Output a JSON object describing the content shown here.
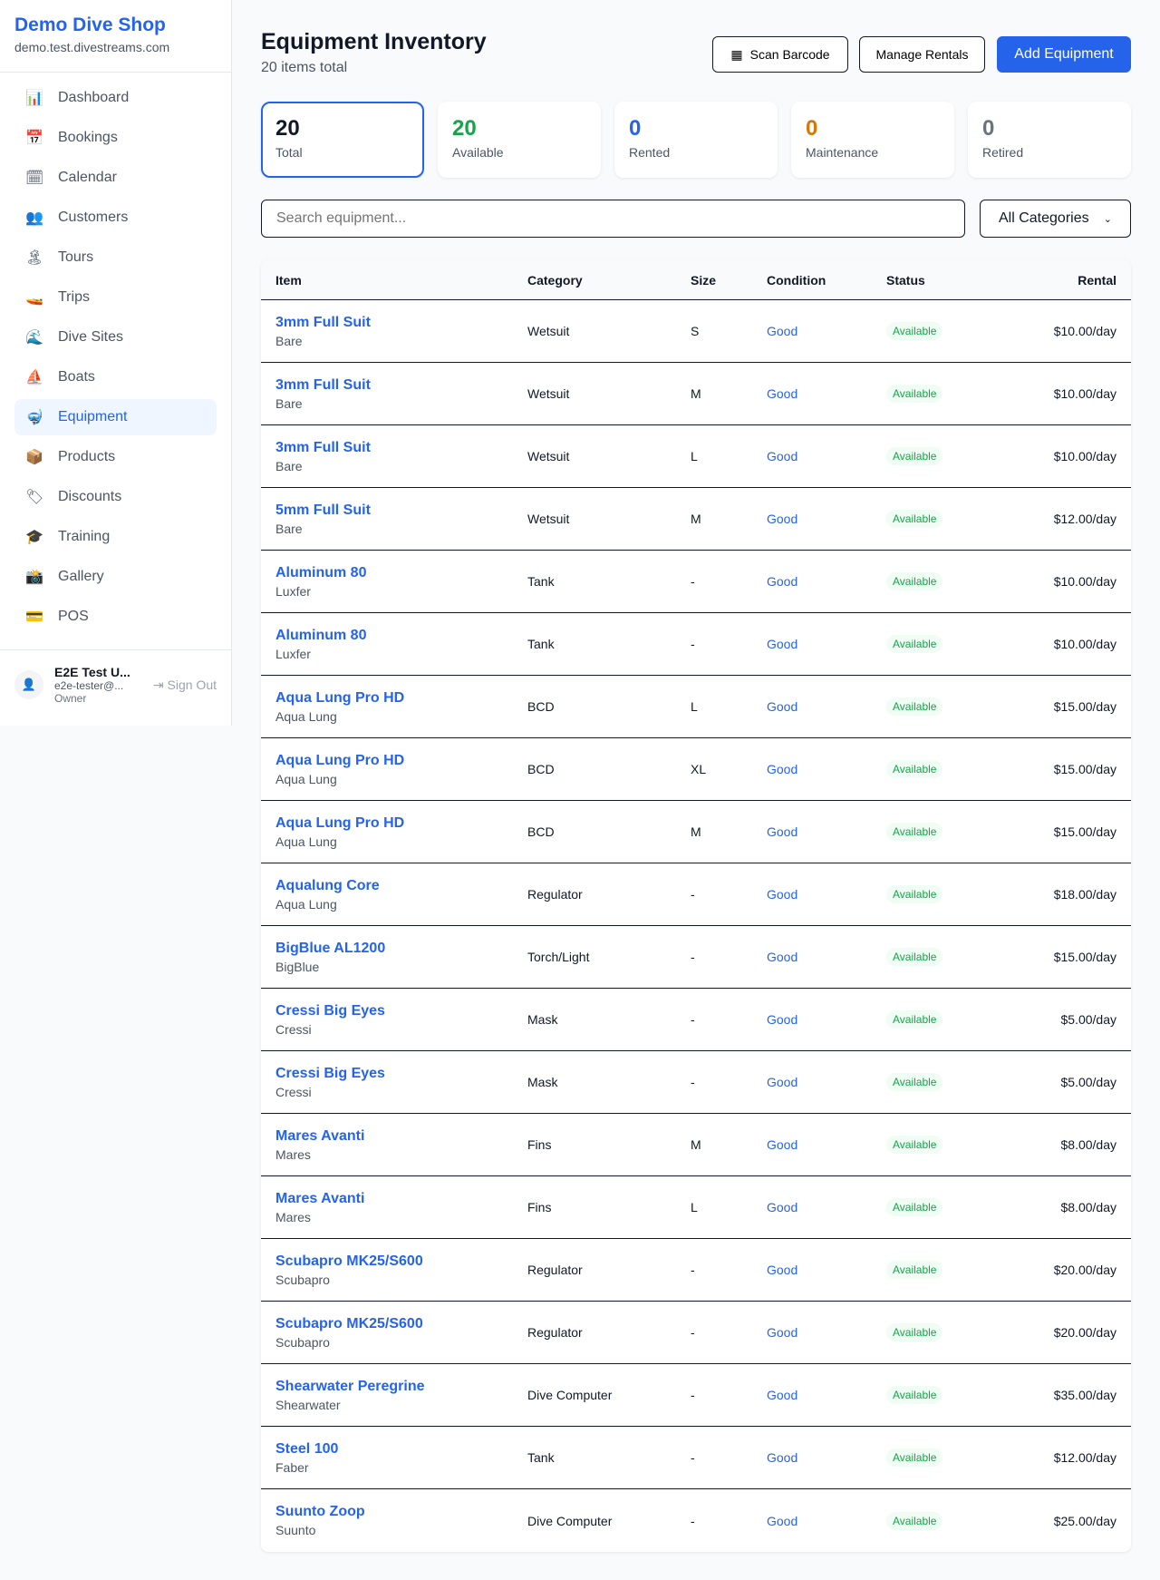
{
  "sidebar": {
    "brand": "Demo Dive Shop",
    "domain": "demo.test.divestreams.com",
    "items": [
      {
        "label": "Dashboard",
        "icon": "📊",
        "name": "bar-chart"
      },
      {
        "label": "Bookings",
        "icon": "📅",
        "name": "calendar-date"
      },
      {
        "label": "Calendar",
        "icon": "🗓",
        "name": "calendar"
      },
      {
        "label": "Customers",
        "icon": "👥",
        "name": "people"
      },
      {
        "label": "Tours",
        "icon": "🏝",
        "name": "island"
      },
      {
        "label": "Trips",
        "icon": "🚤",
        "name": "speedboat"
      },
      {
        "label": "Dive Sites",
        "icon": "🌊",
        "name": "wave"
      },
      {
        "label": "Boats",
        "icon": "⛵",
        "name": "sailboat"
      },
      {
        "label": "Equipment",
        "icon": "🤿",
        "name": "diving-mask"
      },
      {
        "label": "Products",
        "icon": "📦",
        "name": "package"
      },
      {
        "label": "Discounts",
        "icon": "🏷",
        "name": "tag"
      },
      {
        "label": "Training",
        "icon": "🎓",
        "name": "graduation-cap"
      },
      {
        "label": "Gallery",
        "icon": "📸",
        "name": "camera"
      },
      {
        "label": "POS",
        "icon": "💳",
        "name": "credit-card"
      }
    ],
    "active": "Equipment",
    "user": {
      "name": "E2E Test U...",
      "email": "e2e-tester@...",
      "role": "Owner",
      "sign_out": "Sign Out"
    }
  },
  "header": {
    "title": "Equipment Inventory",
    "subtitle": "20 items total",
    "scan": "Scan Barcode",
    "manage": "Manage Rentals",
    "add": "Add Equipment"
  },
  "stats": [
    {
      "value": "20",
      "label": "Total",
      "color": "#111827"
    },
    {
      "value": "20",
      "label": "Available",
      "color": "#16a34a"
    },
    {
      "value": "0",
      "label": "Rented",
      "color": "#2563eb"
    },
    {
      "value": "0",
      "label": "Maintenance",
      "color": "#d97706"
    },
    {
      "value": "0",
      "label": "Retired",
      "color": "#6b7280"
    }
  ],
  "filters": {
    "search_placeholder": "Search equipment...",
    "category": "All Categories"
  },
  "table": {
    "columns": [
      "Item",
      "Category",
      "Size",
      "Condition",
      "Status",
      "Rental"
    ],
    "rows": [
      [
        "3mm Full Suit",
        "Bare",
        "Wetsuit",
        "S",
        "Good",
        "Available",
        "$10.00/day"
      ],
      [
        "3mm Full Suit",
        "Bare",
        "Wetsuit",
        "M",
        "Good",
        "Available",
        "$10.00/day"
      ],
      [
        "3mm Full Suit",
        "Bare",
        "Wetsuit",
        "L",
        "Good",
        "Available",
        "$10.00/day"
      ],
      [
        "5mm Full Suit",
        "Bare",
        "Wetsuit",
        "M",
        "Good",
        "Available",
        "$12.00/day"
      ],
      [
        "Aluminum 80",
        "Luxfer",
        "Tank",
        "-",
        "Good",
        "Available",
        "$10.00/day"
      ],
      [
        "Aluminum 80",
        "Luxfer",
        "Tank",
        "-",
        "Good",
        "Available",
        "$10.00/day"
      ],
      [
        "Aqua Lung Pro HD",
        "Aqua Lung",
        "BCD",
        "L",
        "Good",
        "Available",
        "$15.00/day"
      ],
      [
        "Aqua Lung Pro HD",
        "Aqua Lung",
        "BCD",
        "XL",
        "Good",
        "Available",
        "$15.00/day"
      ],
      [
        "Aqua Lung Pro HD",
        "Aqua Lung",
        "BCD",
        "M",
        "Good",
        "Available",
        "$15.00/day"
      ],
      [
        "Aqualung Core",
        "Aqua Lung",
        "Regulator",
        "-",
        "Good",
        "Available",
        "$18.00/day"
      ],
      [
        "BigBlue AL1200",
        "BigBlue",
        "Torch/Light",
        "-",
        "Good",
        "Available",
        "$15.00/day"
      ],
      [
        "Cressi Big Eyes",
        "Cressi",
        "Mask",
        "-",
        "Good",
        "Available",
        "$5.00/day"
      ],
      [
        "Cressi Big Eyes",
        "Cressi",
        "Mask",
        "-",
        "Good",
        "Available",
        "$5.00/day"
      ],
      [
        "Mares Avanti",
        "Mares",
        "Fins",
        "M",
        "Good",
        "Available",
        "$8.00/day"
      ],
      [
        "Mares Avanti",
        "Mares",
        "Fins",
        "L",
        "Good",
        "Available",
        "$8.00/day"
      ],
      [
        "Scubapro MK25/S600",
        "Scubapro",
        "Regulator",
        "-",
        "Good",
        "Available",
        "$20.00/day"
      ],
      [
        "Scubapro MK25/S600",
        "Scubapro",
        "Regulator",
        "-",
        "Good",
        "Available",
        "$20.00/day"
      ],
      [
        "Shearwater Peregrine",
        "Shearwater",
        "Dive Computer",
        "-",
        "Good",
        "Available",
        "$35.00/day"
      ],
      [
        "Steel 100",
        "Faber",
        "Tank",
        "-",
        "Good",
        "Available",
        "$12.00/day"
      ],
      [
        "Suunto Zoop",
        "Suunto",
        "Dive Computer",
        "-",
        "Good",
        "Available",
        "$25.00/day"
      ]
    ]
  }
}
